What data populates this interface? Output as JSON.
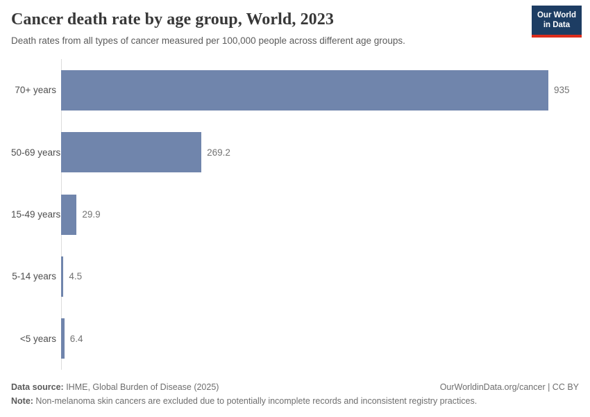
{
  "header": {
    "title": "Cancer death rate by age group, World, 2023",
    "subtitle": "Death rates from all types of cancer measured per 100,000 people across different age groups."
  },
  "logo": {
    "line1": "Our World",
    "line2": "in Data"
  },
  "chart_data": {
    "type": "bar",
    "orientation": "horizontal",
    "title": "Cancer death rate by age group, World, 2023",
    "subtitle": "Death rates from all types of cancer measured per 100,000 people across different age groups.",
    "categories": [
      "70+ years",
      "50-69 years",
      "15-49 years",
      "5-14 years",
      "<5 years"
    ],
    "values": [
      935,
      269.2,
      29.9,
      4.5,
      6.4
    ],
    "value_labels": [
      "935",
      "269.2",
      "29.9",
      "4.5",
      "6.4"
    ],
    "xlabel": "",
    "ylabel": "",
    "xlim": [
      0,
      935
    ],
    "grid": false,
    "legend": "none",
    "unit": "deaths per 100,000 people"
  },
  "colors": {
    "bar": "#7085ac",
    "axis": "#dcdcdc",
    "logo_bg": "#1d3d63",
    "logo_red": "#dc2d1c",
    "title_text": "#383838",
    "subtitle_text": "#5b5b5b",
    "value_text": "#737373"
  },
  "footer": {
    "data_source_label": "Data source:",
    "data_source_value": " IHME, Global Burden of Disease (2025)",
    "link_text": "OurWorldinData.org/cancer | CC BY",
    "note_label": "Note:",
    "note_value": " Non-melanoma skin cancers are excluded due to potentially incomplete records and inconsistent registry practices."
  }
}
